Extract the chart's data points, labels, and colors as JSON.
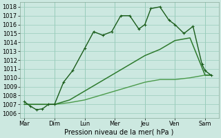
{
  "bg_color": "#cce8e0",
  "plot_bg": "#cce8e0",
  "grid_color": "#99ccbb",
  "x_labels": [
    "Mar",
    "Dim",
    "Lun",
    "Mer",
    "Jeu",
    "Ven",
    "Sam"
  ],
  "ylabel": "Pression niveau de la mer( hPa )",
  "ylim": [
    1005.5,
    1018.5
  ],
  "yticks": [
    1006,
    1007,
    1008,
    1009,
    1010,
    1011,
    1012,
    1013,
    1014,
    1015,
    1016,
    1017,
    1018
  ],
  "line1_x": [
    0,
    0.2,
    0.4,
    0.6,
    0.8,
    1.0,
    1.3,
    1.6,
    2.0,
    2.3,
    2.6,
    2.9,
    3.2,
    3.5,
    3.8,
    4.0,
    4.2,
    4.5,
    4.8,
    5.0,
    5.3,
    5.6,
    5.9,
    6.0,
    6.2
  ],
  "line1_y": [
    1007.3,
    1006.8,
    1006.4,
    1006.5,
    1007.0,
    1007.0,
    1009.5,
    1010.8,
    1013.3,
    1015.2,
    1014.8,
    1015.2,
    1017.0,
    1017.0,
    1015.5,
    1016.0,
    1017.8,
    1018.0,
    1016.5,
    1016.0,
    1015.0,
    1015.8,
    1011.5,
    1010.8,
    1010.3
  ],
  "line1_color": "#1a5c1a",
  "line2_x": [
    0,
    0.5,
    1.0,
    1.5,
    2.0,
    2.5,
    3.0,
    3.5,
    4.0,
    4.5,
    5.0,
    5.5,
    6.0,
    6.2
  ],
  "line2_y": [
    1007.0,
    1007.0,
    1007.0,
    1007.5,
    1008.5,
    1009.5,
    1010.5,
    1011.5,
    1012.5,
    1013.2,
    1014.2,
    1014.5,
    1010.3,
    1010.3
  ],
  "line2_color": "#2d7a2d",
  "line3_x": [
    0,
    0.5,
    1.0,
    1.5,
    2.0,
    2.5,
    3.0,
    3.5,
    4.0,
    4.5,
    5.0,
    5.5,
    6.0,
    6.2
  ],
  "line3_y": [
    1007.0,
    1007.0,
    1007.0,
    1007.2,
    1007.5,
    1008.0,
    1008.5,
    1009.0,
    1009.5,
    1009.8,
    1009.8,
    1010.0,
    1010.3,
    1010.3
  ],
  "line3_color": "#4a9a4a",
  "ylabel_fontsize": 7,
  "tick_fontsize": 6,
  "linewidth1": 1.0,
  "linewidth2": 1.1,
  "linewidth3": 1.0,
  "marker_size": 2.5
}
